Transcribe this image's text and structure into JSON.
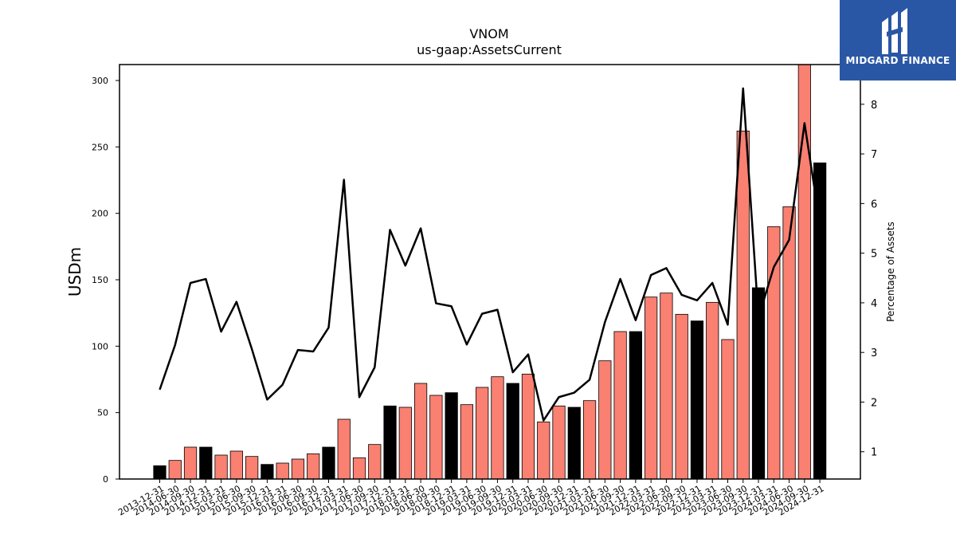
{
  "chart_data": {
    "type": "bar",
    "title": "VNOM",
    "subtitle": "us-gaap:AssetsCurrent",
    "ylabel": "USDm",
    "y2label": "Percentage of Assets",
    "ylim": [
      0,
      312
    ],
    "y2lim": [
      0.45,
      8.8
    ],
    "yticks": [
      0,
      50,
      100,
      150,
      200,
      250,
      300
    ],
    "y2ticks": [
      1,
      2,
      3,
      4,
      5,
      6,
      7,
      8
    ],
    "categories": [
      "2013-12-31",
      "2014-06-30",
      "2014-09-30",
      "2014-12-31",
      "2015-03-31",
      "2015-06-30",
      "2015-09-30",
      "2015-12-31",
      "2016-03-31",
      "2016-06-30",
      "2016-09-30",
      "2016-12-31",
      "2017-03-31",
      "2017-06-30",
      "2017-09-30",
      "2017-12-31",
      "2018-03-31",
      "2018-06-30",
      "2018-09-30",
      "2018-12-31",
      "2019-03-31",
      "2019-06-30",
      "2019-09-30",
      "2019-12-31",
      "2020-03-31",
      "2020-06-30",
      "2020-09-30",
      "2020-12-31",
      "2021-03-31",
      "2021-06-30",
      "2021-09-30",
      "2021-12-31",
      "2022-03-31",
      "2022-06-30",
      "2022-09-30",
      "2022-12-31",
      "2023-03-31",
      "2023-06-30",
      "2023-09-30",
      "2023-12-31",
      "2024-03-31",
      "2024-06-30",
      "2024-09-30",
      "2024-12-31"
    ],
    "series": [
      {
        "kind": "bar",
        "values": [
          10,
          14,
          24,
          24,
          18,
          21,
          17,
          11,
          12,
          15,
          19,
          24,
          45,
          16,
          26,
          55,
          54,
          72,
          63,
          65,
          56,
          69,
          77,
          72,
          79,
          43,
          55,
          54,
          59,
          89,
          111,
          111,
          137,
          140,
          124,
          119,
          133,
          105,
          262,
          144,
          190,
          205,
          313,
          238
        ],
        "colors": [
          "#000000",
          "#fa8072",
          "#fa8072",
          "#000000",
          "#fa8072",
          "#fa8072",
          "#fa8072",
          "#000000",
          "#fa8072",
          "#fa8072",
          "#fa8072",
          "#000000",
          "#fa8072",
          "#fa8072",
          "#fa8072",
          "#000000",
          "#fa8072",
          "#fa8072",
          "#fa8072",
          "#000000",
          "#fa8072",
          "#fa8072",
          "#fa8072",
          "#000000",
          "#fa8072",
          "#fa8072",
          "#fa8072",
          "#000000",
          "#fa8072",
          "#fa8072",
          "#fa8072",
          "#000000",
          "#fa8072",
          "#fa8072",
          "#fa8072",
          "#000000",
          "#fa8072",
          "#fa8072",
          "#fa8072",
          "#000000",
          "#fa8072",
          "#fa8072",
          "#fa8072",
          "#000000"
        ]
      },
      {
        "kind": "line",
        "axis": "right",
        "color": "#000000",
        "values": [
          2.25,
          3.15,
          4.4,
          4.48,
          3.42,
          4.02,
          3.07,
          2.05,
          2.35,
          3.05,
          3.02,
          3.5,
          6.48,
          2.1,
          2.7,
          5.47,
          4.75,
          5.5,
          3.99,
          3.93,
          3.16,
          3.78,
          3.86,
          2.6,
          2.96,
          1.63,
          2.1,
          2.19,
          2.45,
          3.61,
          4.48,
          3.65,
          4.56,
          4.7,
          4.16,
          4.05,
          4.4,
          3.56,
          8.32,
          3.7,
          4.72,
          5.27,
          7.62,
          5.6
        ]
      }
    ],
    "grid": false,
    "legend": "none"
  },
  "logo": {
    "text": "MIDGARD FINANCE",
    "bg": "#2a57a5"
  }
}
